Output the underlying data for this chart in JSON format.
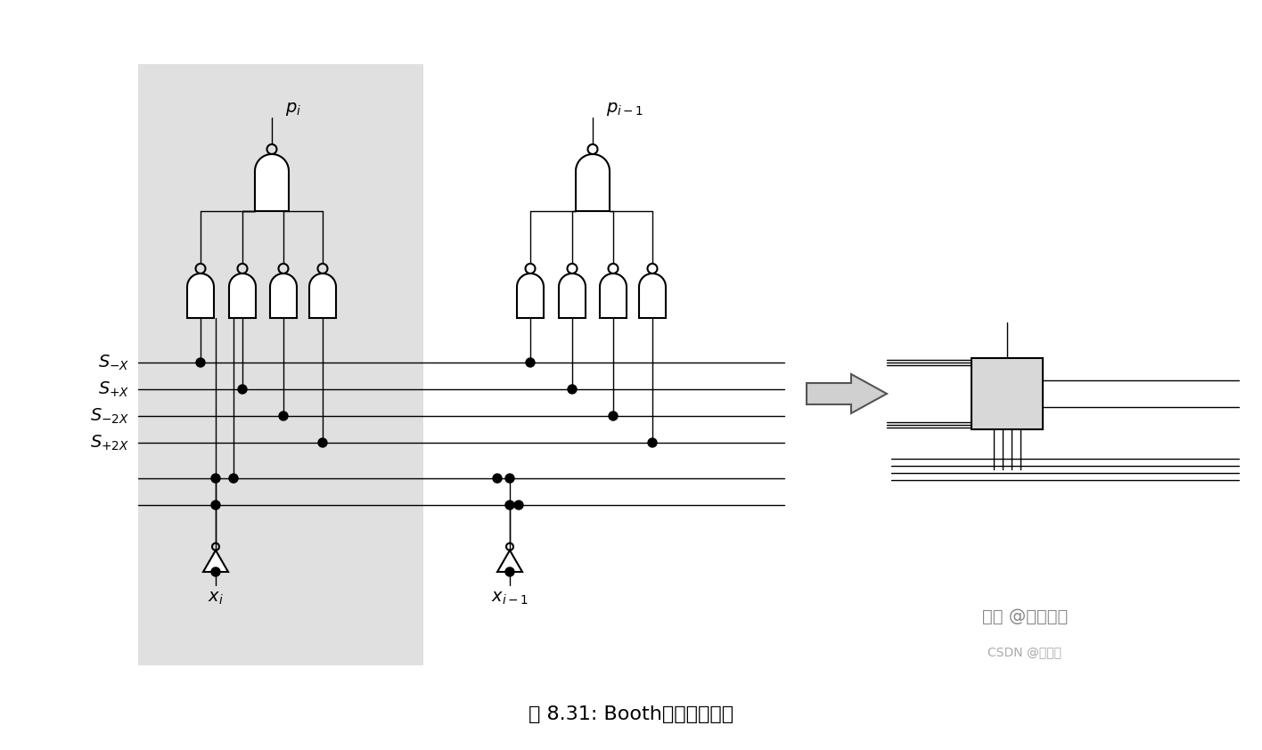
{
  "bg_color": "#ffffff",
  "gray_bg_color": "#e0e0e0",
  "gate_fill": "#ffffff",
  "gate_edge": "#000000",
  "line_color": "#000000",
  "dot_color": "#000000",
  "arrow_color": "#cccccc",
  "title": "图 8.31: Booth结果选择逻辑",
  "title_fontsize": 16,
  "watermark1": "知乎 @开芯小杨",
  "watermark2": "CSDN @牧码银",
  "label_pi": "p_i",
  "label_pi1": "p_{i-1}",
  "label_xi": "x_i",
  "label_xi1": "x_{i-1}",
  "label_snx": "S_{-X}",
  "label_spx": "S_{+X}",
  "label_sn2x": "S_{-2X}",
  "label_sp2x": "S_{+2X}"
}
